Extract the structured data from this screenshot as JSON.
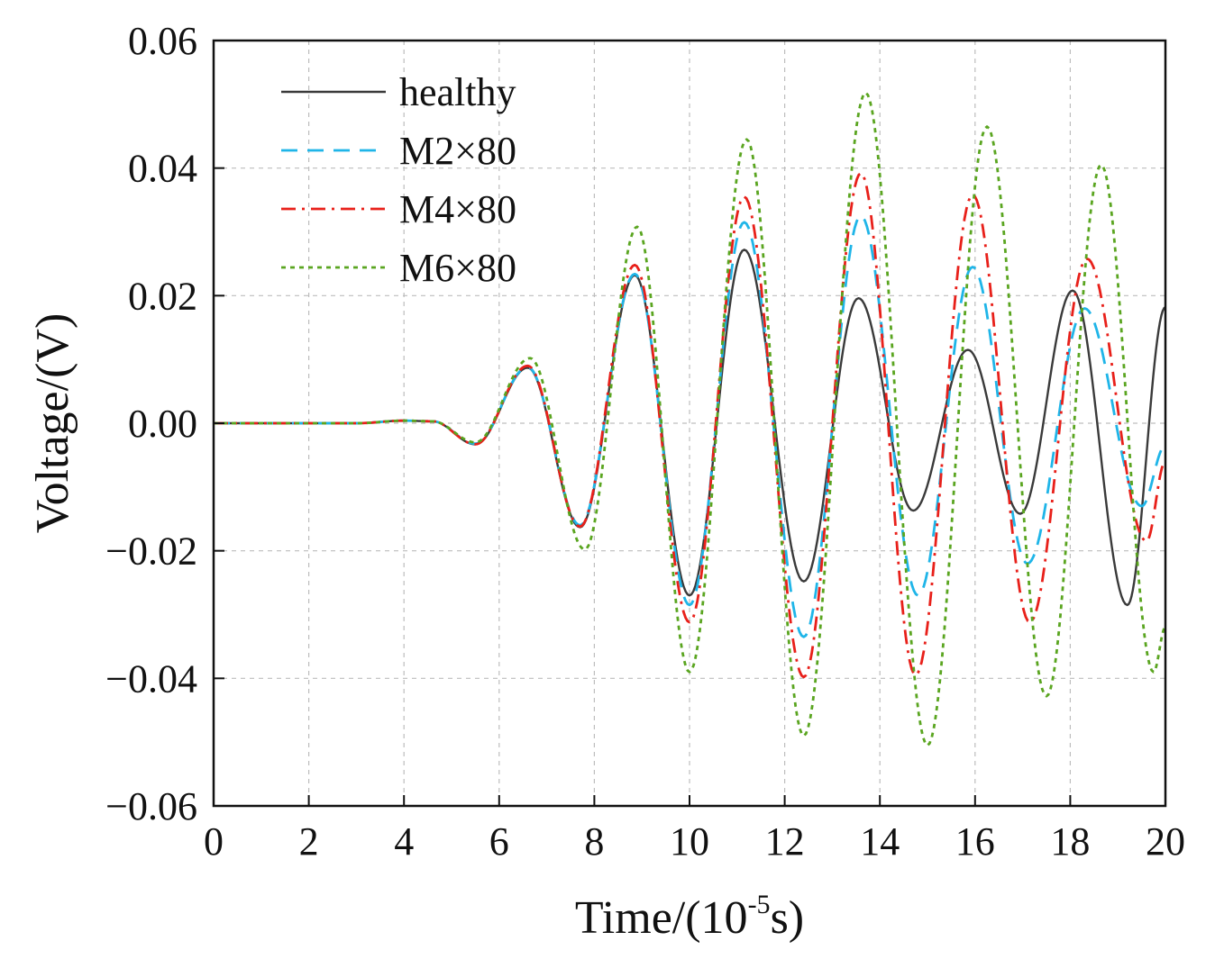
{
  "chart_data": {
    "type": "line",
    "title": "",
    "xlabel_main": "Time/(10",
    "xlabel_sup": "-5",
    "xlabel_tail": "s)",
    "ylabel": "Voltage/(V)",
    "xlim": [
      0,
      20
    ],
    "ylim": [
      -0.06,
      0.06
    ],
    "x_ticks": [
      "0",
      "2",
      "4",
      "6",
      "8",
      "10",
      "12",
      "14",
      "16",
      "18",
      "20"
    ],
    "y_ticks": [
      "0.06",
      "0.04",
      "0.02",
      "0.00",
      "−0.02",
      "−0.04",
      "−0.06"
    ],
    "grid": true,
    "legend_position": "top-left",
    "series": [
      {
        "name": "healthy",
        "color": "#3a3a3a",
        "style": "solid",
        "points": [
          [
            0,
            0
          ],
          [
            3,
            0
          ],
          [
            4,
            0.0004
          ],
          [
            4.6,
            0.0003
          ],
          [
            5.5,
            -0.0033
          ],
          [
            6.6,
            0.0087
          ],
          [
            7.7,
            -0.0163
          ],
          [
            8.85,
            0.0232
          ],
          [
            10,
            -0.027
          ],
          [
            11.15,
            0.0272
          ],
          [
            12.4,
            -0.0248
          ],
          [
            13.55,
            0.0196
          ],
          [
            14.7,
            -0.0137
          ],
          [
            15.85,
            0.0115
          ],
          [
            16.95,
            -0.0142
          ],
          [
            18.05,
            0.0208
          ],
          [
            19.2,
            -0.0285
          ],
          [
            20,
            0.0182
          ]
        ]
      },
      {
        "name": "M2×80",
        "color": "#1fb5e8",
        "style": "dashed",
        "points": [
          [
            0,
            0
          ],
          [
            3,
            0
          ],
          [
            4,
            0.0004
          ],
          [
            4.6,
            0.0003
          ],
          [
            5.5,
            -0.0032
          ],
          [
            6.6,
            0.0088
          ],
          [
            7.7,
            -0.016
          ],
          [
            8.85,
            0.0234
          ],
          [
            10,
            -0.0285
          ],
          [
            11.15,
            0.0315
          ],
          [
            12.4,
            -0.0335
          ],
          [
            13.6,
            0.0325
          ],
          [
            14.8,
            -0.027
          ],
          [
            15.95,
            0.0245
          ],
          [
            17.1,
            -0.022
          ],
          [
            18.3,
            0.018
          ],
          [
            19.5,
            -0.013
          ],
          [
            20,
            -0.0035
          ]
        ]
      },
      {
        "name": "M4×80",
        "color": "#e8201a",
        "style": "dashdot",
        "points": [
          [
            0,
            0
          ],
          [
            3,
            0
          ],
          [
            4,
            0.0004
          ],
          [
            4.6,
            0.0003
          ],
          [
            5.5,
            -0.0033
          ],
          [
            6.6,
            0.009
          ],
          [
            7.7,
            -0.0162
          ],
          [
            8.85,
            0.0248
          ],
          [
            10,
            -0.0312
          ],
          [
            11.15,
            0.0355
          ],
          [
            12.4,
            -0.0398
          ],
          [
            13.6,
            0.0392
          ],
          [
            14.75,
            -0.0395
          ],
          [
            15.95,
            0.0358
          ],
          [
            17.15,
            -0.0312
          ],
          [
            18.35,
            0.0258
          ],
          [
            19.6,
            -0.0185
          ],
          [
            20,
            -0.006
          ]
        ]
      },
      {
        "name": "M6×80",
        "color": "#5aa520",
        "style": "dotted",
        "points": [
          [
            0,
            0
          ],
          [
            3,
            0
          ],
          [
            4,
            0.0004
          ],
          [
            4.6,
            0.0003
          ],
          [
            5.5,
            -0.003
          ],
          [
            6.65,
            0.0102
          ],
          [
            7.8,
            -0.0198
          ],
          [
            8.9,
            0.0308
          ],
          [
            10,
            -0.039
          ],
          [
            11.2,
            0.0445
          ],
          [
            12.4,
            -0.049
          ],
          [
            13.7,
            0.0518
          ],
          [
            15,
            -0.0505
          ],
          [
            16.25,
            0.0465
          ],
          [
            17.5,
            -0.0428
          ],
          [
            18.65,
            0.0405
          ],
          [
            19.75,
            -0.039
          ],
          [
            20,
            -0.032
          ]
        ]
      }
    ]
  }
}
